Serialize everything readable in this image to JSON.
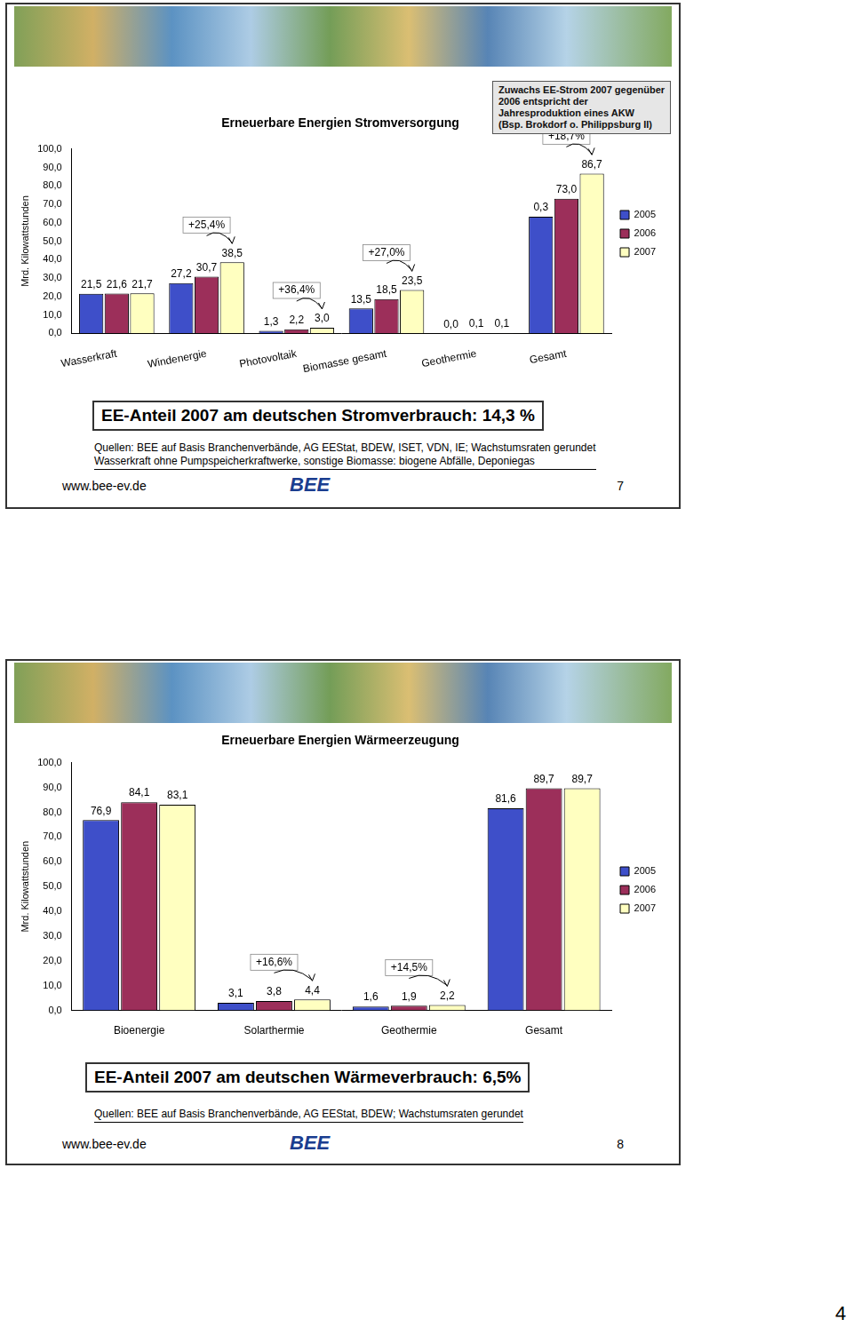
{
  "page_number": "4",
  "footer_url": "www.bee-ev.de",
  "logo": "BEE",
  "chart_data": [
    {
      "type": "bar",
      "title": "Erneuerbare Energien Stromversorgung",
      "y_label": "Mrd. Kilowattstunden",
      "categories": [
        "Wasserkraft",
        "Windenergie",
        "Photovoltaik",
        "Biomasse gesamt",
        "Geothermie",
        "Gesamt"
      ],
      "series": [
        {
          "name": "2005",
          "color": "#3e4fc9",
          "values": [
            21.5,
            27.2,
            1.3,
            13.5,
            0.0,
            63.3
          ],
          "value_labels": [
            "21,5",
            "27,2",
            "1,3",
            "13,5",
            "0,0",
            null
          ]
        },
        {
          "name": "2006",
          "color": "#9c2f5a",
          "values": [
            21.6,
            30.7,
            2.2,
            18.5,
            0.1,
            73.0
          ],
          "value_labels": [
            "21,6",
            "30,7",
            "2,2",
            "18,5",
            "0,1",
            "73,0"
          ]
        },
        {
          "name": "2007",
          "color": "#ffffc0",
          "values": [
            21.7,
            38.5,
            3.0,
            23.5,
            0.1,
            86.7
          ],
          "value_labels": [
            "21,7",
            "38,5",
            "3,0",
            "23,5",
            "0,1",
            "86,7"
          ]
        }
      ],
      "ylim": [
        0,
        100
      ],
      "yticks": [
        {
          "value": 0,
          "label": "0,0"
        },
        {
          "value": 10,
          "label": "10,0"
        },
        {
          "value": 20,
          "label": "20,0"
        },
        {
          "value": 30,
          "label": "30,0"
        },
        {
          "value": 40,
          "label": "40,0"
        },
        {
          "value": 50,
          "label": "50,0"
        },
        {
          "value": 60,
          "label": "60,0"
        },
        {
          "value": 70,
          "label": "70,0"
        },
        {
          "value": 80,
          "label": "80,0"
        },
        {
          "value": 90,
          "label": "90,0"
        },
        {
          "value": 100,
          "label": "100,0"
        }
      ],
      "grid": false,
      "legend": "right",
      "data_labels": true,
      "annotations": [
        {
          "category": "Windenergie",
          "text": "+25,4%"
        },
        {
          "category": "Photovoltaik",
          "text": "+36,4%"
        },
        {
          "category": "Biomasse gesamt",
          "text": "+27,0%"
        },
        {
          "category": "Gesamt",
          "text": "+18,7%"
        },
        {
          "category": "Gesamt",
          "series": "2005",
          "text": "0,3"
        }
      ],
      "callout": [
        "Zuwachs EE-Strom 2007 gegenüber",
        "2006 entspricht der",
        "Jahresproduktion eines AKW",
        "(Bsp. Brokdorf o. Philippsburg II)"
      ],
      "highlight": "EE-Anteil 2007 am deutschen Stromverbrauch: 14,3 %",
      "sources": [
        "Quellen: BEE auf Basis Branchenverbände, AG EEStat, BDEW, ISET, VDN, IE; Wachstumsraten gerundet",
        "Wasserkraft ohne Pumpspeicherkraftwerke, sonstige Biomasse: biogene Abfälle, Deponiegas"
      ],
      "slide_number": "7"
    },
    {
      "type": "bar",
      "title": "Erneuerbare Energien Wärmeerzeugung",
      "y_label": "Mrd. Kilowattstunden",
      "categories": [
        "Bioenergie",
        "Solarthermie",
        "Geothermie",
        "Gesamt"
      ],
      "series": [
        {
          "name": "2005",
          "color": "#3e4fc9",
          "values": [
            76.9,
            3.1,
            1.6,
            81.6
          ],
          "value_labels": [
            "76,9",
            "3,1",
            "1,6",
            "81,6"
          ]
        },
        {
          "name": "2006",
          "color": "#9c2f5a",
          "values": [
            84.1,
            3.8,
            1.9,
            89.7
          ],
          "value_labels": [
            "84,1",
            "3,8",
            "1,9",
            "89,7"
          ]
        },
        {
          "name": "2007",
          "color": "#ffffc0",
          "values": [
            83.1,
            4.4,
            2.2,
            89.7
          ],
          "value_labels": [
            "83,1",
            "4,4",
            "2,2",
            "89,7"
          ]
        }
      ],
      "ylim": [
        0,
        100
      ],
      "yticks": [
        {
          "value": 0,
          "label": "0,0"
        },
        {
          "value": 10,
          "label": "10,0"
        },
        {
          "value": 20,
          "label": "20,0"
        },
        {
          "value": 30,
          "label": "30,0"
        },
        {
          "value": 40,
          "label": "40,0"
        },
        {
          "value": 50,
          "label": "50,0"
        },
        {
          "value": 60,
          "label": "60,0"
        },
        {
          "value": 70,
          "label": "70,0"
        },
        {
          "value": 80,
          "label": "80,0"
        },
        {
          "value": 90,
          "label": "90,0"
        },
        {
          "value": 100,
          "label": "100,0"
        }
      ],
      "grid": false,
      "legend": "right",
      "data_labels": true,
      "annotations": [
        {
          "category": "Solarthermie",
          "text": "+16,6%"
        },
        {
          "category": "Geothermie",
          "text": "+14,5%"
        }
      ],
      "highlight": "EE-Anteil 2007 am deutschen Wärmeverbrauch: 6,5%",
      "sources": [
        "Quellen: BEE auf Basis Branchenverbände, AG EEStat, BDEW; Wachstumsraten gerundet"
      ],
      "slide_number": "8"
    }
  ]
}
